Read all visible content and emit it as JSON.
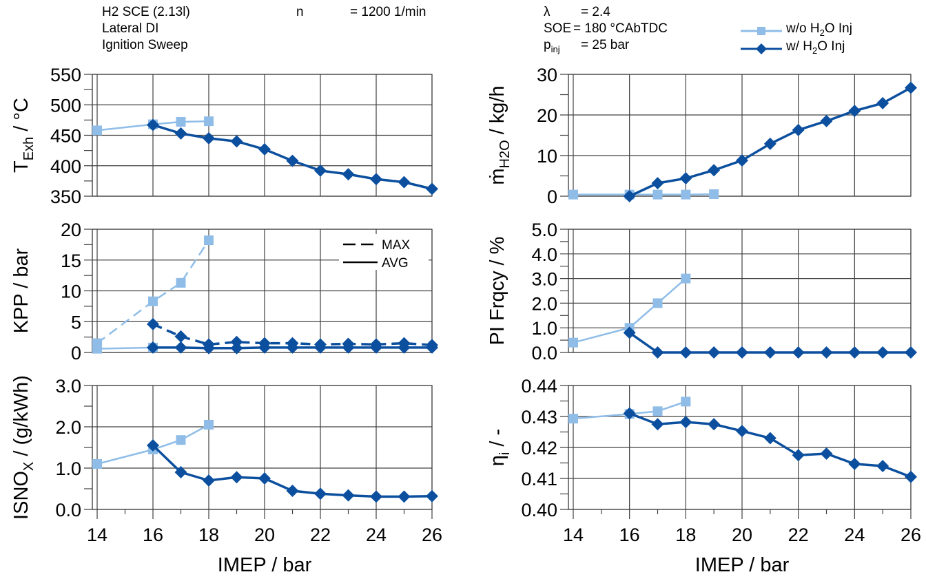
{
  "header": {
    "engine": "H2 SCE (2.13l)",
    "injection": "Lateral DI",
    "sweep": "Ignition Sweep",
    "n_label": "n",
    "n_value": "= 1200 1/min",
    "lambda_label": "λ",
    "lambda_value": "= 2.4",
    "soe_label": "SOE",
    "soe_value": "= 180 °CAbTDC",
    "pinj_label": "p",
    "pinj_sub": "inj",
    "pinj_value": "= 25 bar"
  },
  "legend": {
    "series_wo": "w/o H2O Inj",
    "series_wo_parts": [
      "w/o H",
      "2",
      "O Inj"
    ],
    "series_w": "w/ H2O Inj",
    "series_w_parts": [
      "w/ H",
      "2",
      "O Inj"
    ],
    "kpp_max": "MAX",
    "kpp_avg": "AVG"
  },
  "colors": {
    "wo": "#8fbde8",
    "w": "#0b4f9e",
    "grid": "#404040"
  },
  "chart_data": [
    {
      "id": "texh",
      "type": "line",
      "ylabel": "T_Exh / °C",
      "ylabel_parts": [
        "T",
        "Exh",
        " / °C"
      ],
      "xlabel": "",
      "xlim": [
        14,
        26
      ],
      "ylim": [
        350,
        550
      ],
      "yticks": [
        350,
        400,
        450,
        500,
        550
      ],
      "ytick_labels": [
        "350",
        "400",
        "450",
        "500",
        "550"
      ],
      "grid": true,
      "series": [
        {
          "name": "w/o H2O Inj",
          "x": [
            14,
            16,
            17,
            18
          ],
          "y": [
            458,
            468,
            472,
            473
          ]
        },
        {
          "name": "w/ H2O Inj",
          "x": [
            16,
            17,
            18,
            19,
            20,
            21,
            22,
            23,
            24,
            25,
            26
          ],
          "y": [
            467,
            453,
            445,
            440,
            427,
            408,
            392,
            386,
            378,
            373,
            362
          ]
        }
      ]
    },
    {
      "id": "kpp",
      "type": "line",
      "ylabel": "KPP / bar",
      "ylabel_parts": [
        "KPP / bar",
        "",
        ""
      ],
      "xlabel": "",
      "xlim": [
        14,
        26
      ],
      "ylim": [
        0,
        20
      ],
      "yticks": [
        0,
        5,
        10,
        15,
        20
      ],
      "ytick_labels": [
        "0",
        "5",
        "10",
        "15",
        "20"
      ],
      "grid": true,
      "legend_position": "top-right",
      "series": [
        {
          "name": "w/o H2O Inj MAX",
          "style": "dashed",
          "x": [
            14,
            16,
            17,
            18
          ],
          "y": [
            1.5,
            8.3,
            11.3,
            18.2
          ]
        },
        {
          "name": "w/o H2O Inj AVG",
          "style": "solid",
          "x": [
            14,
            16
          ],
          "y": [
            0.6,
            0.8
          ]
        },
        {
          "name": "w/ H2O Inj MAX",
          "style": "dashed",
          "x": [
            16,
            17,
            18,
            19,
            20,
            21,
            22,
            23,
            24,
            25,
            26
          ],
          "y": [
            4.6,
            2.6,
            1.3,
            1.7,
            1.5,
            1.5,
            1.3,
            1.4,
            1.3,
            1.5,
            1.2
          ]
        },
        {
          "name": "w/ H2O Inj AVG",
          "style": "solid",
          "x": [
            16,
            17,
            18,
            19,
            20,
            21,
            22,
            23,
            24,
            25,
            26
          ],
          "y": [
            0.8,
            0.8,
            0.7,
            0.7,
            0.8,
            0.8,
            0.8,
            0.8,
            0.8,
            0.8,
            0.8
          ]
        }
      ]
    },
    {
      "id": "isnox",
      "type": "line",
      "ylabel": "ISNOx / (g/kWh)",
      "ylabel_parts": [
        "ISNO",
        "X",
        " / (g/kWh)"
      ],
      "xlabel": "IMEP / bar",
      "xlim": [
        14,
        26
      ],
      "ylim": [
        0,
        3
      ],
      "yticks": [
        0,
        1,
        2,
        3
      ],
      "ytick_labels": [
        "0.0",
        "1.0",
        "2.0",
        "3.0"
      ],
      "xticks": [
        14,
        16,
        18,
        20,
        22,
        24,
        26
      ],
      "xtick_labels": [
        "14",
        "16",
        "18",
        "20",
        "22",
        "24",
        "26"
      ],
      "grid": true,
      "series": [
        {
          "name": "w/o H2O Inj",
          "x": [
            14,
            16,
            17,
            18
          ],
          "y": [
            1.1,
            1.45,
            1.68,
            2.05
          ]
        },
        {
          "name": "w/ H2O Inj",
          "x": [
            16,
            17,
            18,
            19,
            20,
            21,
            22,
            23,
            24,
            25,
            26
          ],
          "y": [
            1.55,
            0.9,
            0.7,
            0.78,
            0.75,
            0.45,
            0.38,
            0.34,
            0.31,
            0.31,
            0.32
          ]
        }
      ]
    },
    {
      "id": "mh2o",
      "type": "line",
      "ylabel": "ṁH2O / kg/h",
      "ylabel_parts": [
        "ṁ",
        "H2O",
        " / kg/h"
      ],
      "xlabel": "",
      "xlim": [
        14,
        26
      ],
      "ylim": [
        0,
        30
      ],
      "yticks": [
        0,
        10,
        20,
        30
      ],
      "ytick_labels": [
        "0",
        "10",
        "20",
        "30"
      ],
      "grid": true,
      "series": [
        {
          "name": "w/o H2O Inj",
          "x": [
            14,
            16,
            17,
            18,
            19
          ],
          "y": [
            0.4,
            0.4,
            0.4,
            0.4,
            0.5
          ]
        },
        {
          "name": "w/ H2O Inj",
          "x": [
            16,
            17,
            18,
            19,
            20,
            21,
            22,
            23,
            24,
            25,
            26
          ],
          "y": [
            0,
            3.2,
            4.4,
            6.4,
            8.8,
            12.9,
            16.3,
            18.5,
            21.0,
            22.9,
            26.7
          ]
        }
      ]
    },
    {
      "id": "pifreq",
      "type": "line",
      "ylabel": "PI Frqcy / %",
      "ylabel_parts": [
        "PI Frqcy / %",
        "",
        ""
      ],
      "xlabel": "",
      "xlim": [
        14,
        26
      ],
      "ylim": [
        0,
        5
      ],
      "yticks": [
        0,
        1,
        2,
        3,
        4,
        5
      ],
      "ytick_labels": [
        "0.0",
        "1.0",
        "2.0",
        "3.0",
        "4.0",
        "5.0"
      ],
      "grid": true,
      "series": [
        {
          "name": "w/o H2O Inj",
          "x": [
            14,
            16,
            17,
            18
          ],
          "y": [
            0.4,
            1.0,
            2.0,
            3.0
          ]
        },
        {
          "name": "w/ H2O Inj",
          "x": [
            16,
            17,
            18,
            19,
            20,
            21,
            22,
            23,
            24,
            25,
            26
          ],
          "y": [
            0.8,
            0,
            0,
            0,
            0,
            0,
            0,
            0,
            0,
            0,
            0
          ]
        }
      ]
    },
    {
      "id": "etai",
      "type": "line",
      "ylabel": "ηi / -",
      "ylabel_parts": [
        "η",
        "i",
        " / -"
      ],
      "xlabel": "IMEP / bar",
      "xlim": [
        14,
        26
      ],
      "ylim": [
        0.4,
        0.44
      ],
      "yticks": [
        0.4,
        0.41,
        0.42,
        0.43,
        0.44
      ],
      "ytick_labels": [
        "0.40",
        "0.41",
        "0.42",
        "0.43",
        "0.44"
      ],
      "xticks": [
        14,
        16,
        18,
        20,
        22,
        24,
        26
      ],
      "xtick_labels": [
        "14",
        "16",
        "18",
        "20",
        "22",
        "24",
        "26"
      ],
      "grid": true,
      "series": [
        {
          "name": "w/o H2O Inj",
          "x": [
            14,
            16,
            17,
            18
          ],
          "y": [
            0.4293,
            0.4308,
            0.4317,
            0.4348
          ]
        },
        {
          "name": "w/ H2O Inj",
          "x": [
            16,
            17,
            18,
            19,
            20,
            21,
            22,
            23,
            24,
            25,
            26
          ],
          "y": [
            0.431,
            0.4275,
            0.4282,
            0.4275,
            0.4253,
            0.423,
            0.4175,
            0.418,
            0.4147,
            0.414,
            0.4105
          ]
        }
      ]
    }
  ]
}
